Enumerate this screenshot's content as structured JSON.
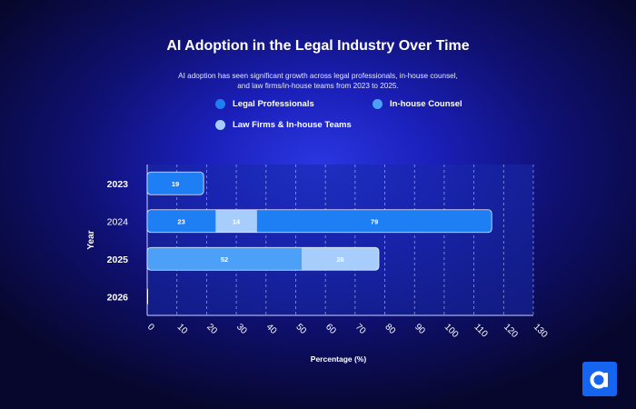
{
  "chart_data": {
    "type": "bar",
    "orientation": "horizontal",
    "stacked": true,
    "title": "AI Adoption in the Legal Industry Over Time",
    "subtitle": "AI adoption has seen significant growth across legal professionals, in-house counsel, and law firms/in-house teams from 2023 to 2025.",
    "xlabel": "Percentage (%)",
    "ylabel": "Year",
    "xlim": [
      0,
      130
    ],
    "x_ticks": [
      0,
      10,
      20,
      30,
      40,
      50,
      60,
      70,
      80,
      90,
      100,
      110,
      120,
      130
    ],
    "categories": [
      "2023",
      "2024",
      "2025",
      "2026"
    ],
    "series": [
      {
        "name": "Legal Professionals",
        "color": "#1e7ff5",
        "values": [
          19,
          23,
          0,
          0
        ]
      },
      {
        "name": "In-house Counsel",
        "color": "#4da0f8",
        "values": [
          0,
          0,
          52,
          0
        ]
      },
      {
        "name": "Law Firms & In-house Teams",
        "color": "#a6cdfb",
        "values": [
          0,
          14,
          26,
          0
        ]
      }
    ],
    "extra_segments": [
      {
        "category": "2024",
        "value": 79,
        "color": "#1e7ff5",
        "series": "Legal Professionals"
      }
    ],
    "grid": "vertical-dashed",
    "legend_position": "top"
  },
  "legend": {
    "items": [
      {
        "label": "Legal Professionals",
        "color": "#1e7ff5"
      },
      {
        "label": "In-house Counsel",
        "color": "#4da0f8"
      },
      {
        "label": "Law Firms & In-house Teams",
        "color": "#a6cdfb"
      }
    ]
  },
  "brand": {
    "logo_icon": "brand-logo-icon",
    "color": "#1565f0"
  }
}
